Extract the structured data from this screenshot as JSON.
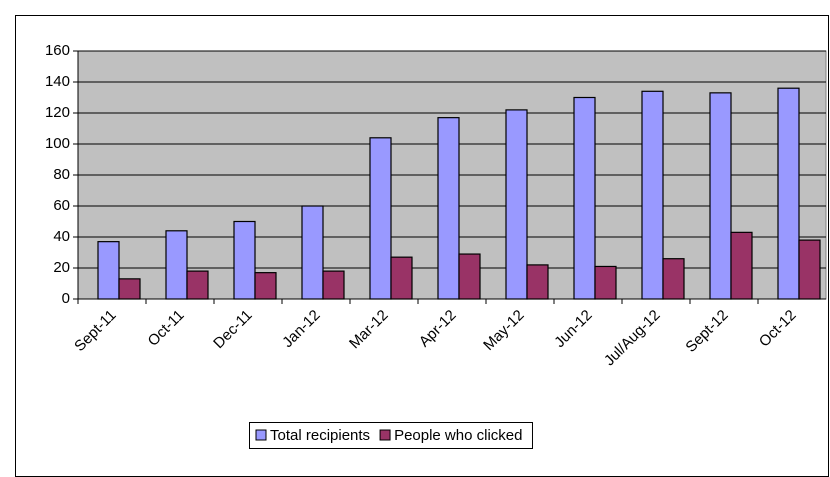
{
  "chart_data": {
    "type": "bar",
    "categories": [
      "Sept-11",
      "Oct-11",
      "Dec-11",
      "Jan-12",
      "Mar-12",
      "Apr-12",
      "May-12",
      "Jun-12",
      "Jul/Aug-12",
      "Sept-12",
      "Oct-12"
    ],
    "series": [
      {
        "name": "Total recipients",
        "color": "#9999ff",
        "values": [
          37,
          44,
          50,
          60,
          104,
          117,
          122,
          130,
          134,
          133,
          136
        ]
      },
      {
        "name": "People who clicked",
        "color": "#993366",
        "values": [
          13,
          18,
          17,
          18,
          27,
          29,
          22,
          21,
          26,
          43,
          38
        ]
      }
    ],
    "ylim": [
      0,
      160
    ],
    "yticks": [
      0,
      20,
      40,
      60,
      80,
      100,
      120,
      140,
      160
    ],
    "grid": true,
    "legend": "bottom"
  }
}
